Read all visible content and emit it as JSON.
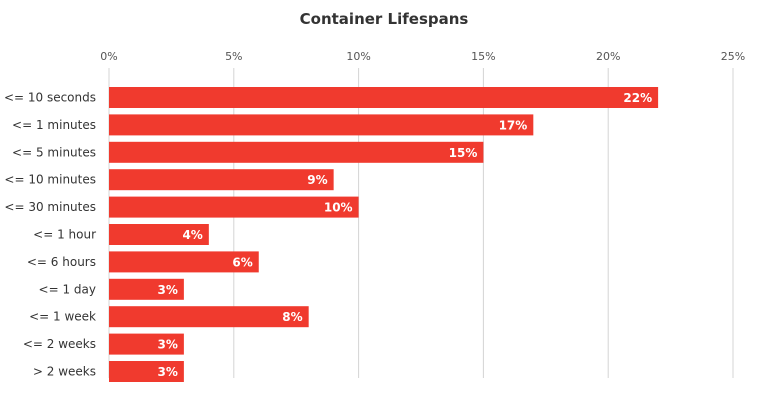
{
  "chart_data": {
    "type": "bar",
    "orientation": "horizontal",
    "title": "Container Lifespans",
    "xlabel": "",
    "ylabel": "",
    "categories": [
      "<= 10 seconds",
      "<= 1 minutes",
      "<= 5 minutes",
      "<= 10 minutes",
      "<= 30 minutes",
      "<= 1 hour",
      "<= 6 hours",
      "<= 1 day",
      "<= 1 week",
      "<= 2 weeks",
      "> 2 weeks"
    ],
    "values": [
      22,
      17,
      15,
      9,
      10,
      4,
      6,
      3,
      8,
      3,
      3
    ],
    "value_labels": [
      "22%",
      "17%",
      "15%",
      "9%",
      "10%",
      "4%",
      "6%",
      "3%",
      "8%",
      "3%",
      "3%"
    ],
    "xlim": [
      0,
      25
    ],
    "x_ticks": [
      0,
      5,
      10,
      15,
      20,
      25
    ],
    "x_tick_labels": [
      "0%",
      "5%",
      "10%",
      "15%",
      "20%",
      "25%"
    ],
    "x_axis_position": "top",
    "grid": true,
    "legend": "none",
    "bar_color": "#f03a2e",
    "label_color": "#ffffff"
  }
}
